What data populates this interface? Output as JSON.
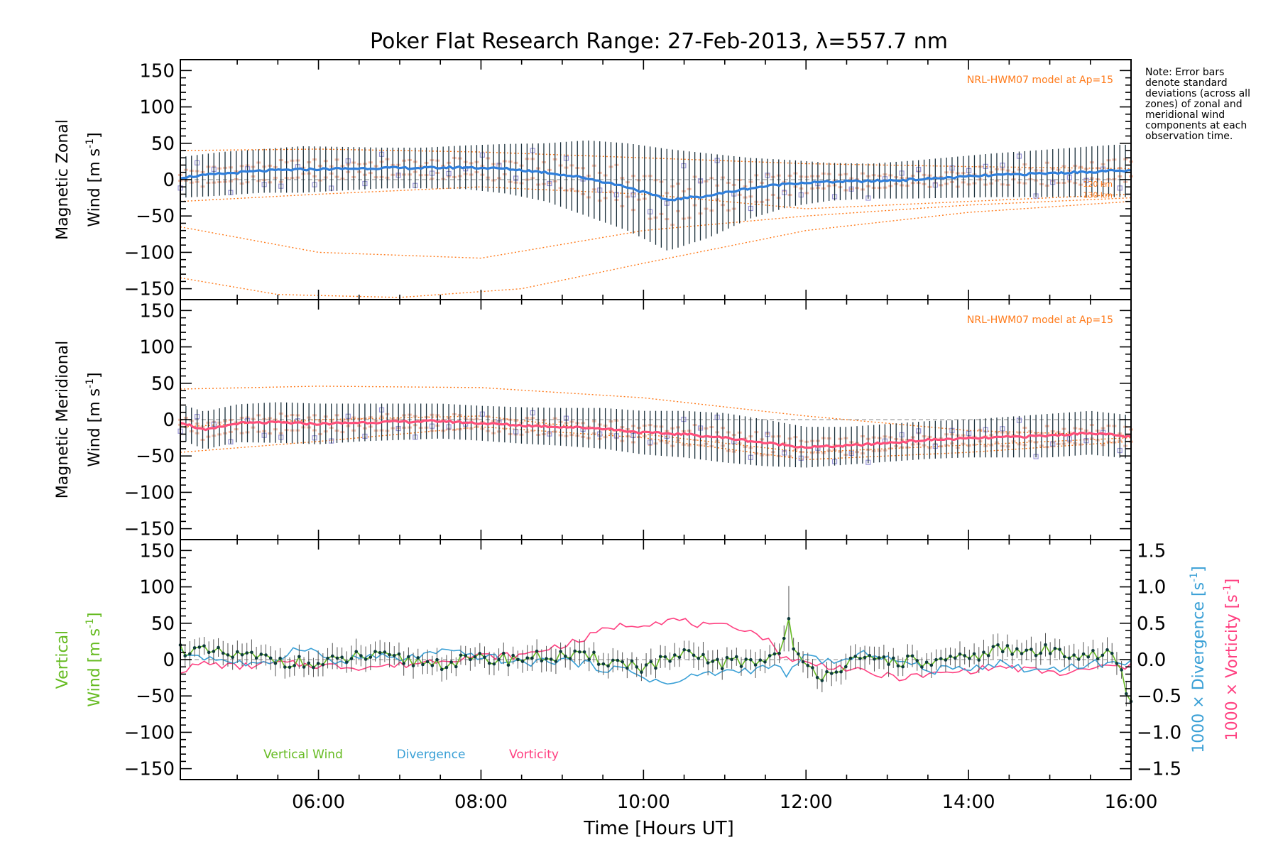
{
  "title": "Poker Flat Research Range: 27-Feb-2013, λ=557.7 nm",
  "note": "Note: Error bars denote standard deviations (across all zones) of zonal and meridional wind components at each observation time.",
  "colors": {
    "zonal": "#2f7fdc",
    "meridional": "#ff4f7a",
    "vertical": "#66bb22",
    "divergence": "#3aa0d6",
    "vorticity": "#ff3f80",
    "model": "#ff7a1a",
    "errorbar": "#1a2f3a",
    "scatter_purple": "#9a96d8",
    "scatter_salmon": "#f5a88a"
  },
  "chart_data": [
    {
      "type": "line",
      "panel": "zonal",
      "ylabel_line1": "Magnetic Zonal",
      "ylabel_line2": "Wind [m s",
      "ylabel_sup": "-1",
      "ylabel_end": "]",
      "ylim": [
        -165,
        165
      ],
      "yticks": [
        "150",
        "100",
        "50",
        "0",
        "−50",
        "−100",
        "−150"
      ],
      "ytick_values": [
        150,
        100,
        50,
        0,
        -50,
        -100,
        -150
      ],
      "model_label": "NRL-HWM07 model at Ap=15",
      "model_level_labels": [
        "120 km",
        "130 km"
      ],
      "x": [
        4.3,
        4.8,
        5.3,
        5.8,
        6.3,
        6.8,
        7.3,
        7.8,
        8.3,
        8.8,
        9.3,
        9.8,
        10.3,
        10.8,
        11.3,
        11.8,
        12.3,
        12.8,
        13.3,
        13.8,
        14.3,
        14.8,
        15.3,
        15.8,
        16.0
      ],
      "mean": [
        3,
        8,
        12,
        14,
        15,
        16,
        16,
        17,
        15,
        10,
        2,
        -10,
        -28,
        -22,
        -12,
        -5,
        -3,
        -2,
        0,
        3,
        6,
        8,
        10,
        12,
        12
      ],
      "std": [
        28,
        30,
        30,
        32,
        30,
        28,
        28,
        30,
        34,
        40,
        52,
        60,
        70,
        58,
        42,
        32,
        26,
        24,
        26,
        28,
        30,
        32,
        34,
        36,
        36
      ],
      "models": [
        {
          "x": [
            4.3,
            6,
            8,
            10,
            12,
            14,
            16
          ],
          "y": [
            40,
            42,
            38,
            30,
            22,
            18,
            15
          ]
        },
        {
          "x": [
            4.3,
            6,
            8,
            10,
            12,
            14,
            16
          ],
          "y": [
            -30,
            -20,
            -10,
            -20,
            -40,
            -30,
            -20
          ]
        },
        {
          "x": [
            4.3,
            6,
            8,
            10,
            12,
            14,
            16
          ],
          "y": [
            -65,
            -100,
            -108,
            -70,
            -50,
            -35,
            -25
          ]
        },
        {
          "x": [
            4.3,
            5.5,
            7,
            8.5,
            10,
            12,
            14,
            16
          ],
          "y": [
            -135,
            -158,
            -162,
            -150,
            -115,
            -70,
            -45,
            -30
          ]
        }
      ]
    },
    {
      "type": "line",
      "panel": "meridional",
      "ylabel_line1": "Magnetic Meridional",
      "ylabel_line2": "Wind [m s",
      "ylabel_sup": "-1",
      "ylabel_end": "]",
      "ylim": [
        -165,
        165
      ],
      "yticks": [
        "150",
        "100",
        "50",
        "0",
        "−50",
        "−100",
        "−150"
      ],
      "ytick_values": [
        150,
        100,
        50,
        0,
        -50,
        -100,
        -150
      ],
      "model_label": "NRL-HWM07 model at Ap=15",
      "x": [
        4.3,
        4.6,
        5.0,
        5.5,
        6.0,
        6.5,
        7.0,
        7.5,
        8.0,
        8.5,
        9.0,
        9.5,
        10.0,
        10.5,
        11.0,
        11.5,
        12.0,
        12.5,
        13.0,
        13.5,
        14.0,
        14.5,
        15.0,
        15.5,
        16.0
      ],
      "mean": [
        -3,
        -15,
        -5,
        -4,
        -6,
        -4,
        -3,
        -2,
        -5,
        -8,
        -10,
        -12,
        -18,
        -20,
        -25,
        -32,
        -38,
        -36,
        -32,
        -28,
        -26,
        -24,
        -22,
        -18,
        -24
      ],
      "std": [
        24,
        26,
        26,
        28,
        28,
        26,
        25,
        24,
        24,
        25,
        26,
        28,
        30,
        32,
        34,
        32,
        28,
        26,
        26,
        26,
        26,
        28,
        30,
        30,
        30
      ],
      "models": [
        {
          "x": [
            4.3,
            6,
            8,
            10,
            12,
            14,
            16
          ],
          "y": [
            42,
            46,
            44,
            30,
            5,
            -15,
            -22
          ]
        },
        {
          "x": [
            4.3,
            6,
            8,
            10,
            12,
            14,
            16
          ],
          "y": [
            -45,
            -30,
            -10,
            -25,
            -55,
            -45,
            -30
          ]
        },
        {
          "x": [
            4.3,
            6,
            8,
            10,
            12,
            14,
            16
          ],
          "y": [
            -10,
            0,
            5,
            -20,
            -45,
            -35,
            -25
          ]
        }
      ]
    },
    {
      "type": "line",
      "panel": "vertical",
      "ylabel_line1": "Vertical",
      "ylabel_line2": "Wind [m s",
      "ylabel_sup": "-1",
      "ylabel_end": "]",
      "ylim": [
        -165,
        165
      ],
      "yticks": [
        "150",
        "100",
        "50",
        "0",
        "−50",
        "−100",
        "−150"
      ],
      "ytick_values": [
        150,
        100,
        50,
        0,
        -50,
        -100,
        -150
      ],
      "y2lim": [
        -1.65,
        1.65
      ],
      "y2ticks": [
        "1.5",
        "1.0",
        "0.5",
        "0.0",
        "−0.5",
        "−1.0",
        "−1.5"
      ],
      "y2tick_values": [
        1.5,
        1.0,
        0.5,
        0.0,
        -0.5,
        -1.0,
        -1.5
      ],
      "y2label_div": "1000 × Divergence [s",
      "y2label_vort": "1000 × Vorticity [s",
      "y2label_sup": "-1",
      "y2label_end": "]",
      "legend": [
        "Vertical Wind",
        "Divergence",
        "Vorticity"
      ],
      "spike": {
        "x": 11.78,
        "y": 62,
        "err": 45
      },
      "vertical": {
        "x": [
          4.3,
          4.6,
          5.0,
          5.5,
          6.0,
          6.5,
          7.0,
          7.5,
          8.0,
          8.5,
          9.0,
          9.5,
          10.0,
          10.5,
          11.0,
          11.5,
          11.7,
          11.78,
          11.86,
          12.0,
          12.2,
          12.5,
          13.0,
          13.5,
          14.0,
          14.3,
          14.6,
          15.0,
          15.5,
          15.8,
          16.0
        ],
        "y": [
          15,
          10,
          5,
          0,
          -8,
          5,
          0,
          -5,
          0,
          2,
          5,
          0,
          -10,
          5,
          -5,
          0,
          10,
          62,
          5,
          -10,
          -20,
          -5,
          0,
          -5,
          0,
          15,
          10,
          12,
          8,
          5,
          -60
        ]
      },
      "divergence": {
        "x": [
          4.3,
          4.8,
          5.3,
          5.8,
          6.2,
          6.6,
          7.0,
          7.5,
          8.0,
          8.5,
          9.0,
          9.4,
          9.8,
          10.3,
          10.7,
          11.2,
          11.6,
          11.8,
          12.0,
          12.4,
          12.8,
          13.2,
          13.6,
          14.0,
          14.4,
          14.8,
          15.2,
          15.6,
          16.0
        ],
        "y": [
          0.1,
          0.0,
          -0.1,
          0.2,
          -0.05,
          0.05,
          0.0,
          0.1,
          0.05,
          -0.05,
          0.0,
          -0.1,
          -0.15,
          -0.35,
          -0.2,
          -0.15,
          -0.1,
          -0.2,
          0.05,
          -0.05,
          0.1,
          -0.05,
          -0.15,
          -0.1,
          -0.05,
          -0.15,
          -0.1,
          -0.05,
          -0.05
        ]
      },
      "vorticity": {
        "x": [
          4.3,
          4.6,
          5.0,
          5.5,
          6.0,
          6.5,
          7.0,
          7.5,
          8.0,
          8.5,
          8.8,
          9.2,
          9.6,
          10.0,
          10.4,
          10.8,
          11.2,
          11.5,
          11.7,
          12.0,
          12.4,
          12.8,
          13.2,
          13.6,
          14.0,
          14.4,
          14.8,
          15.2,
          15.6,
          16.0
        ],
        "y": [
          -0.15,
          -0.05,
          -0.1,
          -0.05,
          -0.08,
          -0.1,
          -0.08,
          0.0,
          0.05,
          0.05,
          0.15,
          0.25,
          0.45,
          0.5,
          0.55,
          0.45,
          0.45,
          0.3,
          0.05,
          -0.05,
          -0.1,
          -0.2,
          -0.25,
          -0.2,
          -0.15,
          -0.1,
          -0.15,
          -0.2,
          -0.1,
          -0.1
        ]
      }
    }
  ],
  "xaxis": {
    "xlim": [
      4.3,
      16.0
    ],
    "tick_values": [
      6,
      8,
      10,
      12,
      14,
      16
    ],
    "tick_labels": [
      "06:00",
      "08:00",
      "10:00",
      "12:00",
      "14:00",
      "16:00"
    ],
    "label": "Time [Hours UT]"
  }
}
